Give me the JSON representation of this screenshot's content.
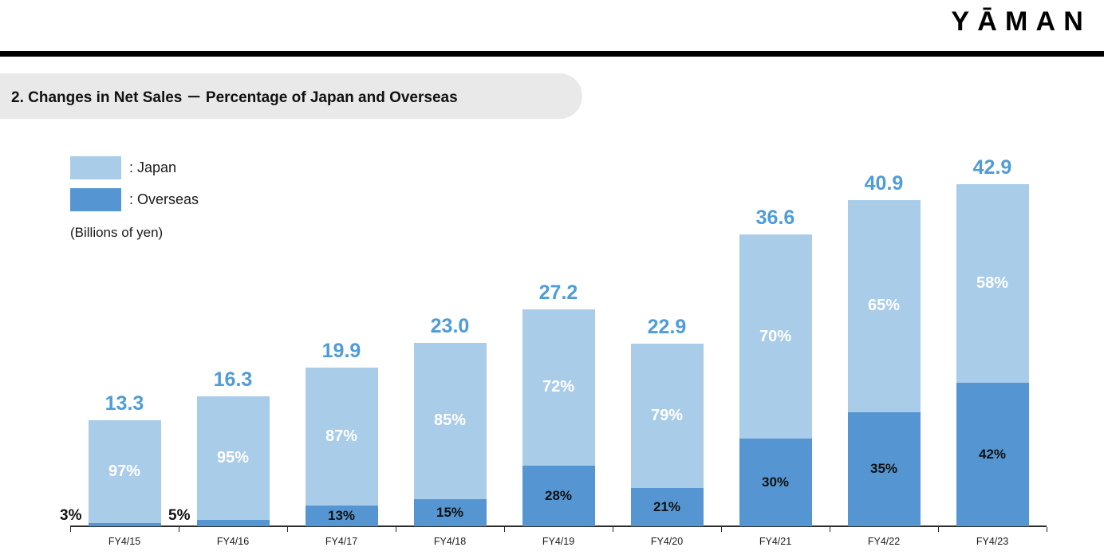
{
  "brand": {
    "logo_text": "YĀMAN"
  },
  "title": "2. Changes in Net Sales － Percentage of Japan and Overseas",
  "legend": {
    "japan_label": ": Japan",
    "overseas_label": ": Overseas",
    "units_label": "(Billions of yen)"
  },
  "colors": {
    "japan": "#a9cce9",
    "overseas": "#5596d2",
    "total_label": "#4e9cd8",
    "axis": "#2b2b2b"
  },
  "chart_data": {
    "type": "bar",
    "stacked": true,
    "title": "2. Changes in Net Sales － Percentage of Japan and Overseas",
    "ylabel": "(Billions of yen)",
    "legend_position": "top-left",
    "y_axis_visible": false,
    "grid": false,
    "categories": [
      "FY4/15",
      "FY4/16",
      "FY4/17",
      "FY4/18",
      "FY4/19",
      "FY4/20",
      "FY4/21",
      "FY4/22",
      "FY4/23"
    ],
    "totals": [
      13.3,
      16.3,
      19.9,
      23.0,
      27.2,
      22.9,
      36.6,
      40.9,
      42.9
    ],
    "series": [
      {
        "name": "Japan",
        "percent": [
          97,
          95,
          87,
          85,
          72,
          79,
          70,
          65,
          58
        ]
      },
      {
        "name": "Overseas",
        "percent": [
          3,
          5,
          13,
          15,
          28,
          21,
          30,
          35,
          42
        ]
      }
    ],
    "total_label_format": "0.0",
    "segment_label_format": "percent"
  }
}
